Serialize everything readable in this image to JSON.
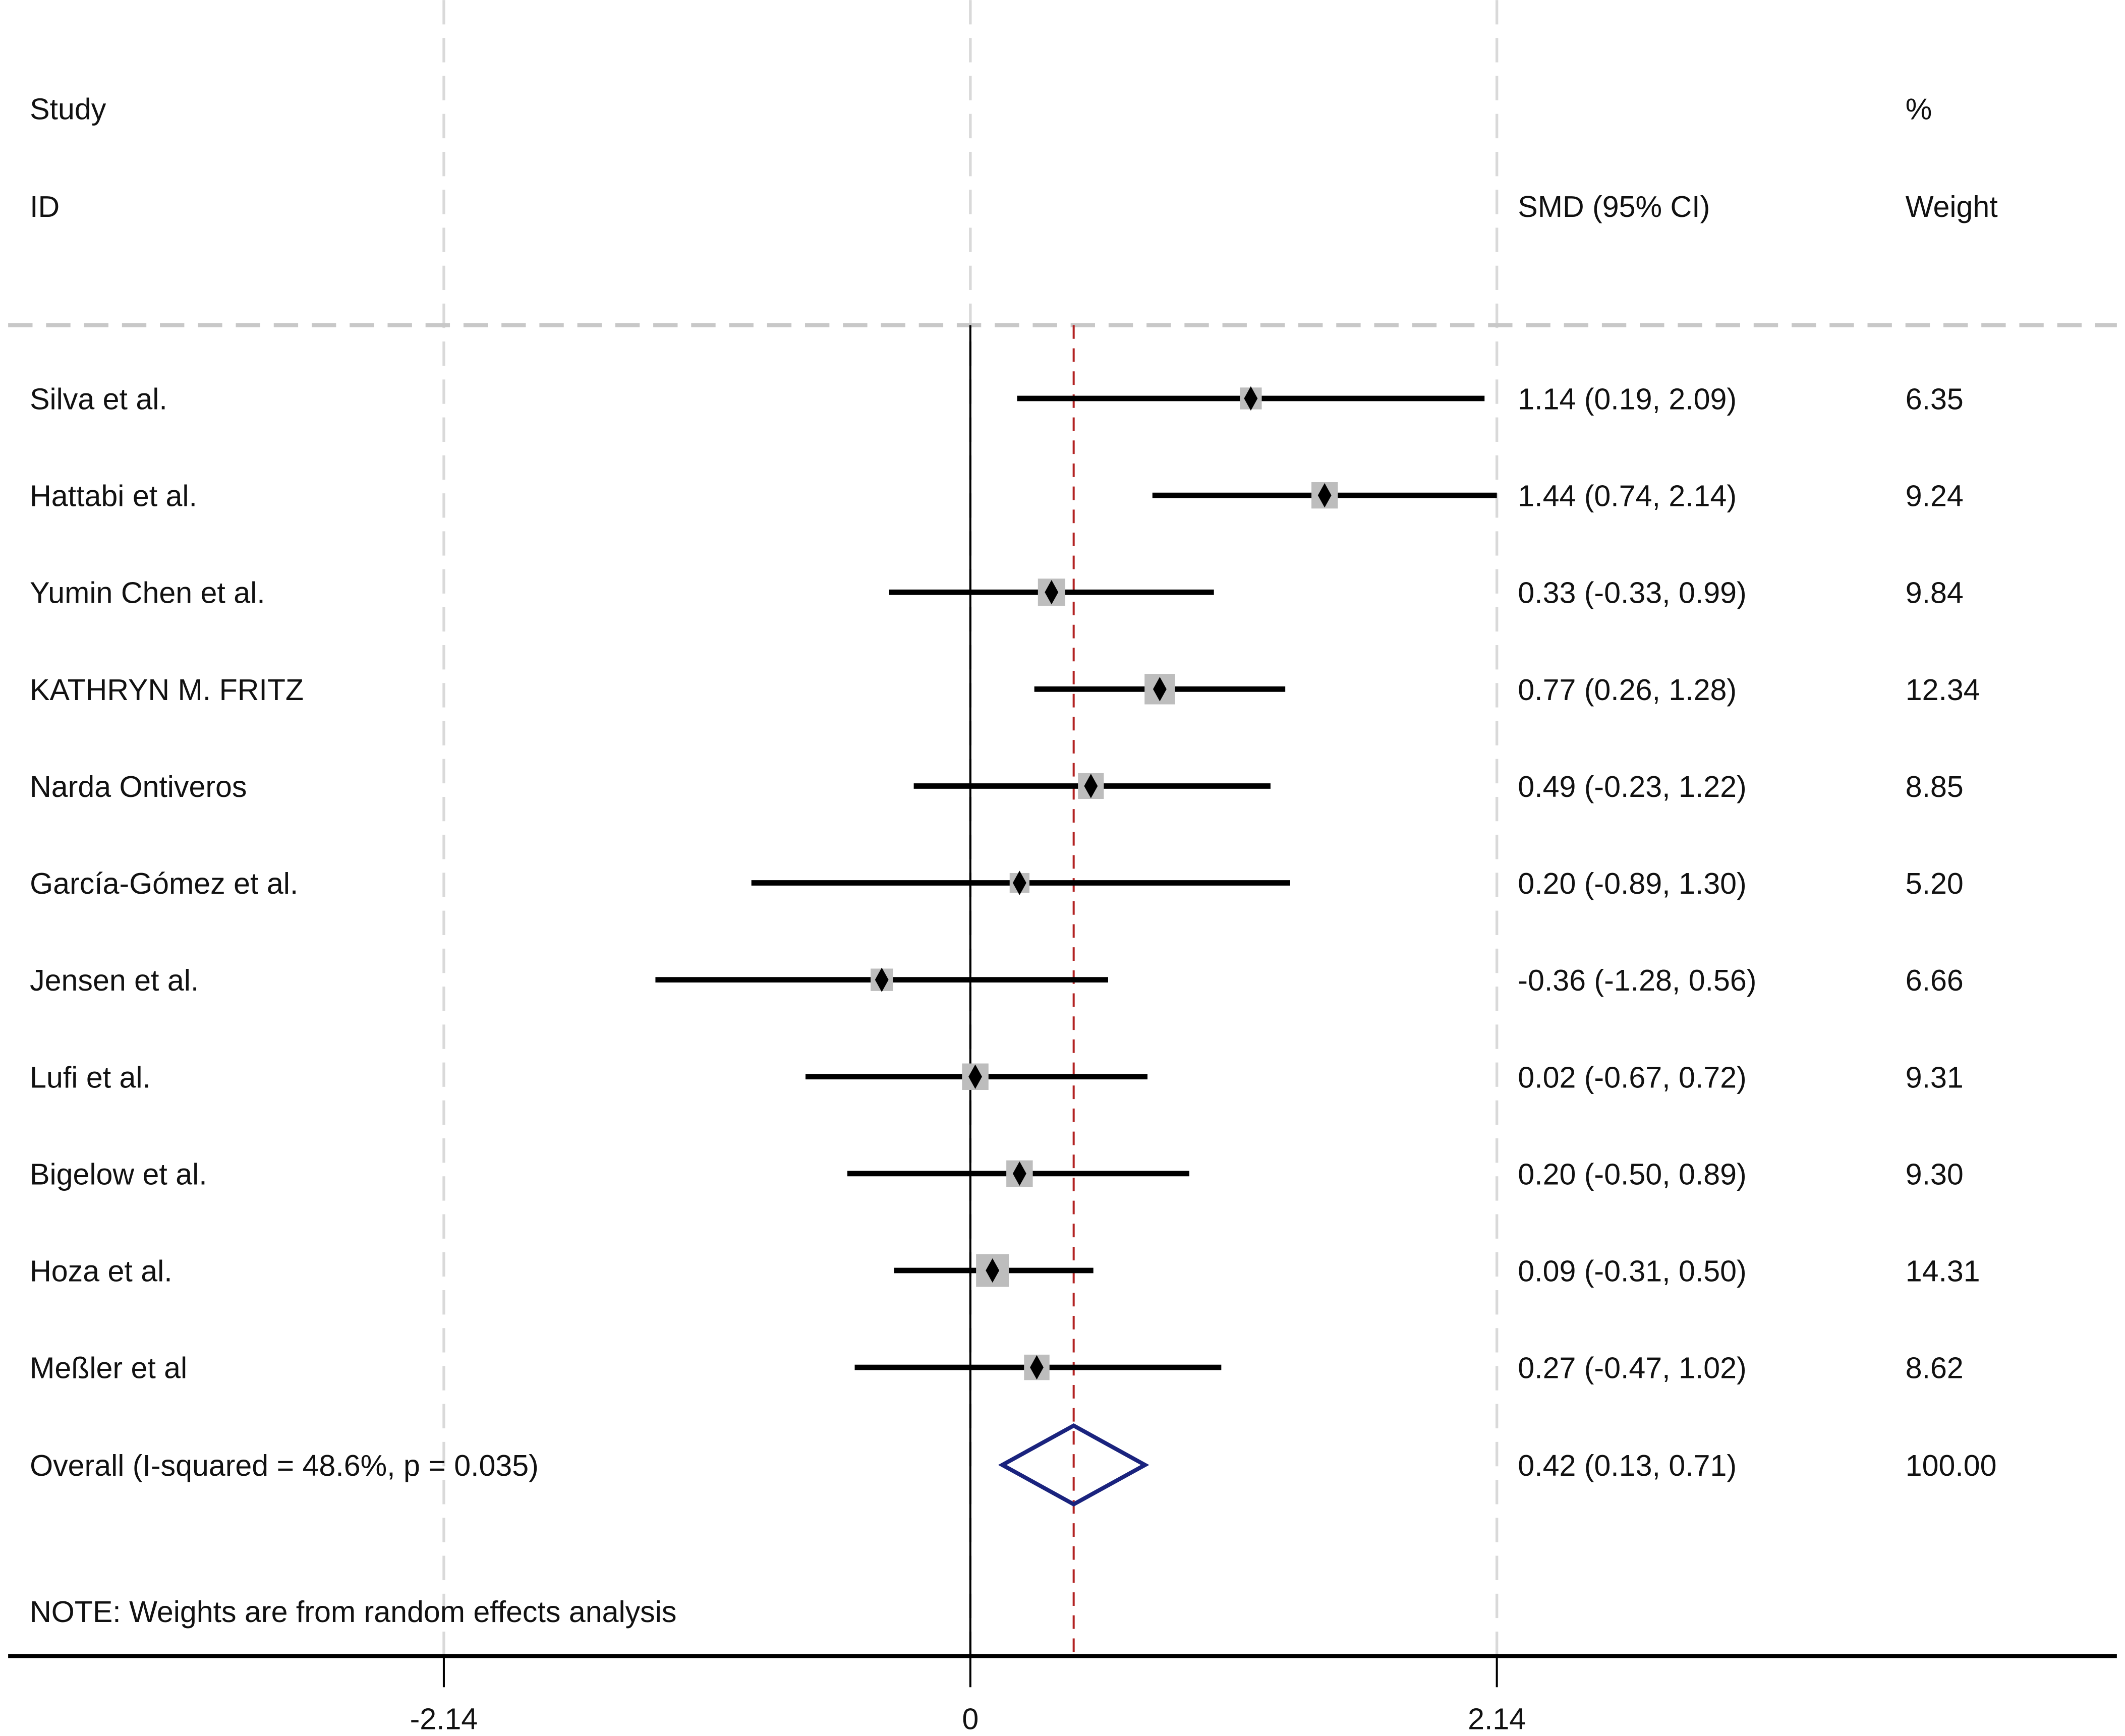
{
  "chart_data": {
    "type": "forest",
    "header": {
      "study_line1": "Study",
      "study_line2": "ID",
      "effect": "SMD (95% CI)",
      "weight_line1": "%",
      "weight_line2": "Weight"
    },
    "studies": [
      {
        "id": "Silva et al.",
        "smd": 1.14,
        "lo": 0.19,
        "hi": 2.09,
        "label": "1.14 (0.19, 2.09)",
        "weight": "6.35"
      },
      {
        "id": "Hattabi et al.",
        "smd": 1.44,
        "lo": 0.74,
        "hi": 2.14,
        "label": "1.44 (0.74, 2.14)",
        "weight": "9.24"
      },
      {
        "id": "Yumin Chen et al.",
        "smd": 0.33,
        "lo": -0.33,
        "hi": 0.99,
        "label": "0.33 (-0.33, 0.99)",
        "weight": "9.84"
      },
      {
        "id": "KATHRYN M. FRITZ",
        "smd": 0.77,
        "lo": 0.26,
        "hi": 1.28,
        "label": "0.77 (0.26, 1.28)",
        "weight": "12.34"
      },
      {
        "id": "Narda Ontiveros",
        "smd": 0.49,
        "lo": -0.23,
        "hi": 1.22,
        "label": "0.49 (-0.23, 1.22)",
        "weight": "8.85"
      },
      {
        "id": "García-Gómez et al.",
        "smd": 0.2,
        "lo": -0.89,
        "hi": 1.3,
        "label": "0.20 (-0.89, 1.30)",
        "weight": "5.20"
      },
      {
        "id": "Jensen et al.",
        "smd": -0.36,
        "lo": -1.28,
        "hi": 0.56,
        "label": "-0.36 (-1.28, 0.56)",
        "weight": "6.66"
      },
      {
        "id": "Lufi et al.",
        "smd": 0.02,
        "lo": -0.67,
        "hi": 0.72,
        "label": "0.02 (-0.67, 0.72)",
        "weight": "9.31"
      },
      {
        "id": "Bigelow et al.",
        "smd": 0.2,
        "lo": -0.5,
        "hi": 0.89,
        "label": "0.20 (-0.50, 0.89)",
        "weight": "9.30"
      },
      {
        "id": "Hoza et al.",
        "smd": 0.09,
        "lo": -0.31,
        "hi": 0.5,
        "label": "0.09 (-0.31, 0.50)",
        "weight": "14.31"
      },
      {
        "id": "Meßler et al",
        "smd": 0.27,
        "lo": -0.47,
        "hi": 1.02,
        "label": "0.27 (-0.47, 1.02)",
        "weight": "8.62"
      }
    ],
    "overall": {
      "id": "Overall  (I-squared = 48.6%, p = 0.035)",
      "smd": 0.42,
      "lo": 0.13,
      "hi": 0.71,
      "label": "0.42 (0.13, 0.71)",
      "weight": "100.00"
    },
    "note": "NOTE: Weights are from random effects analysis",
    "xlim": [
      -2.14,
      2.14
    ],
    "xticks": [
      -2.14,
      0,
      2.14
    ],
    "xtick_labels": [
      "-2.14",
      "0",
      "2.14"
    ],
    "grid": true,
    "colors": {
      "ci": "#000000",
      "box": "#bdbdbd",
      "point": "#000000",
      "diamond": "#1a237e",
      "overall_line": "#b22222",
      "grid": "#d9d9d9"
    }
  }
}
